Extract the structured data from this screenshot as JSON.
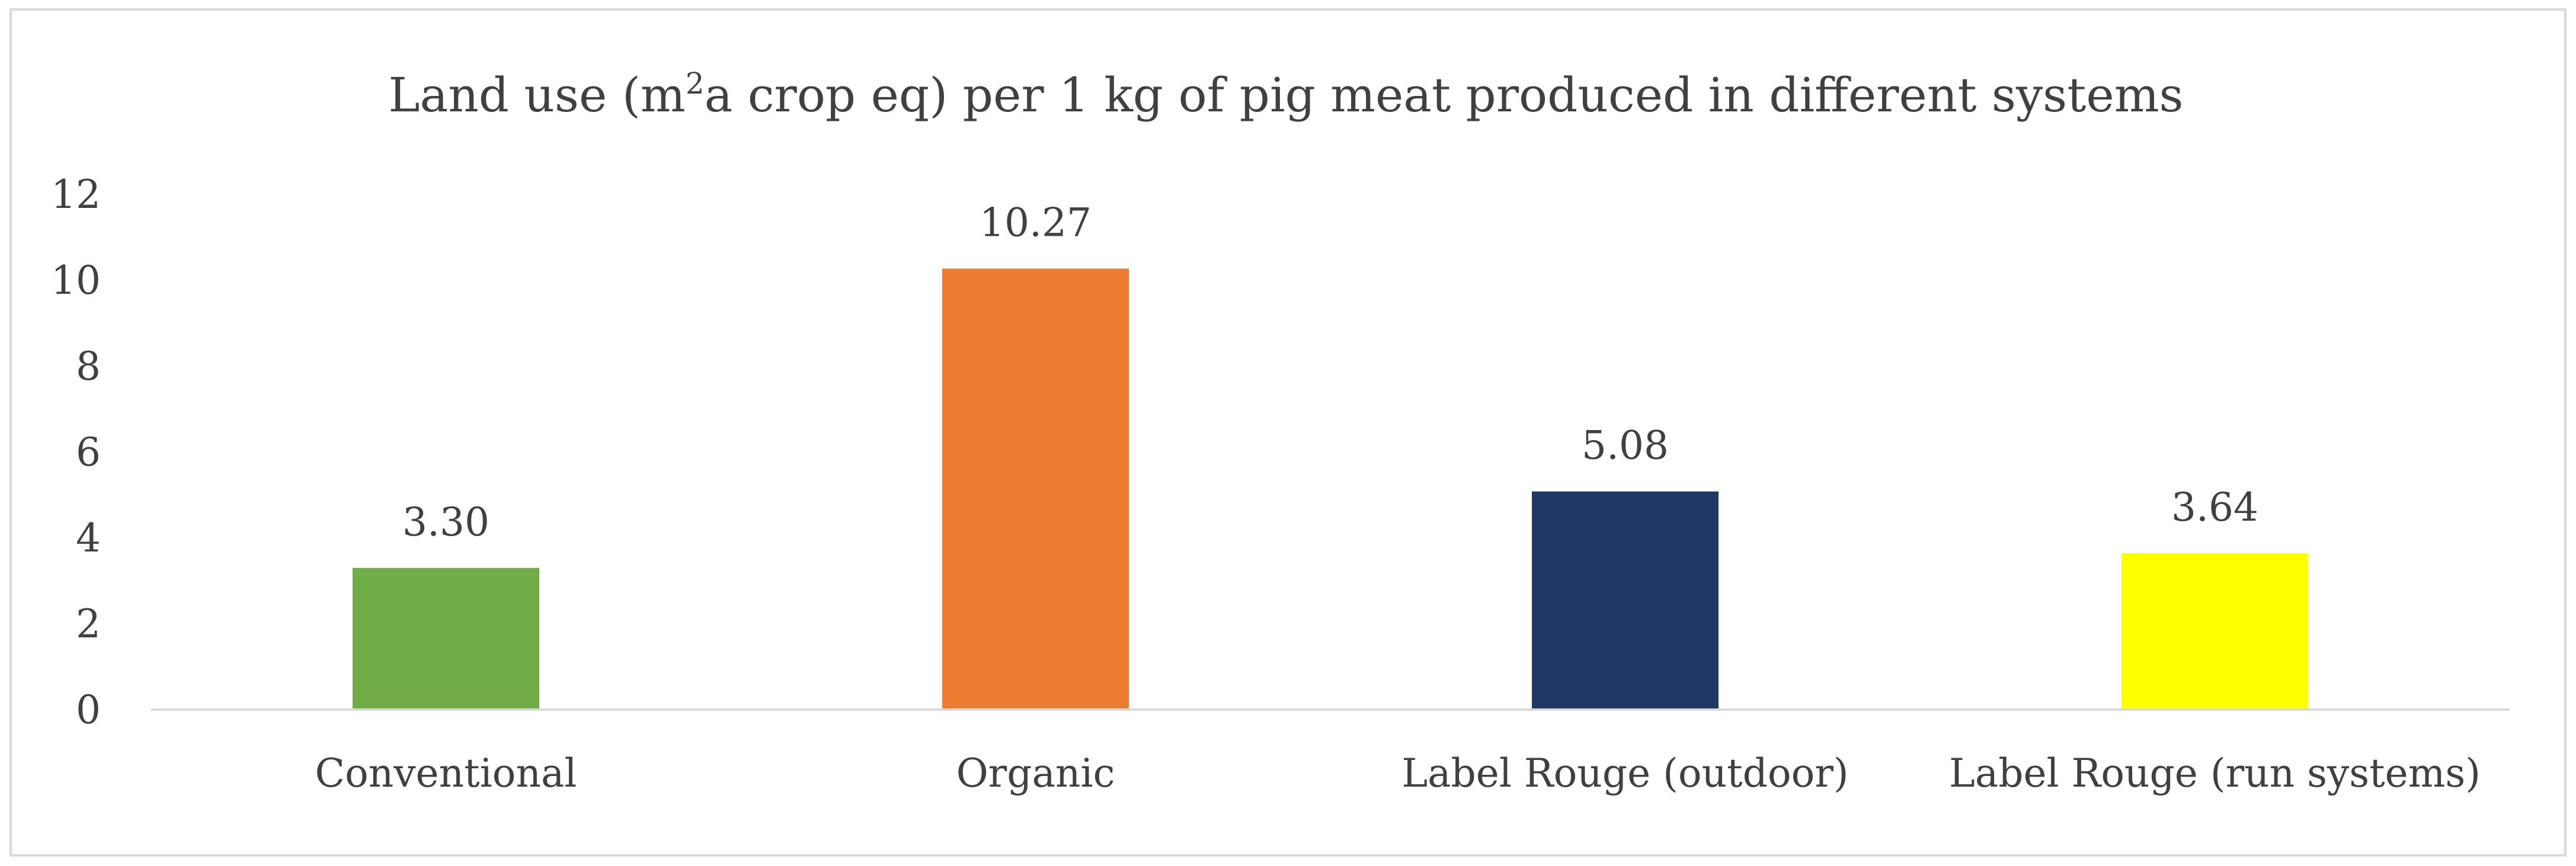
{
  "chart_data": {
    "type": "bar",
    "title": {
      "before": "Land use (m",
      "superscript": "2",
      "after": "a crop eq) per 1 kg of pig meat produced in different systems"
    },
    "categories": [
      "Conventional",
      "Organic",
      "Label Rouge (outdoor)",
      "Label Rouge (run systems)"
    ],
    "values": [
      3.3,
      10.27,
      5.08,
      3.64
    ],
    "data_labels": [
      "3.30",
      "10.27",
      "5.08",
      "3.64"
    ],
    "bar_colors": [
      "#70ad47",
      "#ed7d31",
      "#1f3864",
      "#ffff00"
    ],
    "y_ticks": [
      "0",
      "2",
      "4",
      "6",
      "8",
      "10",
      "12"
    ],
    "ylim": [
      0,
      12
    ],
    "xlabel": "",
    "ylabel": "",
    "grid": false,
    "legend": "none"
  }
}
